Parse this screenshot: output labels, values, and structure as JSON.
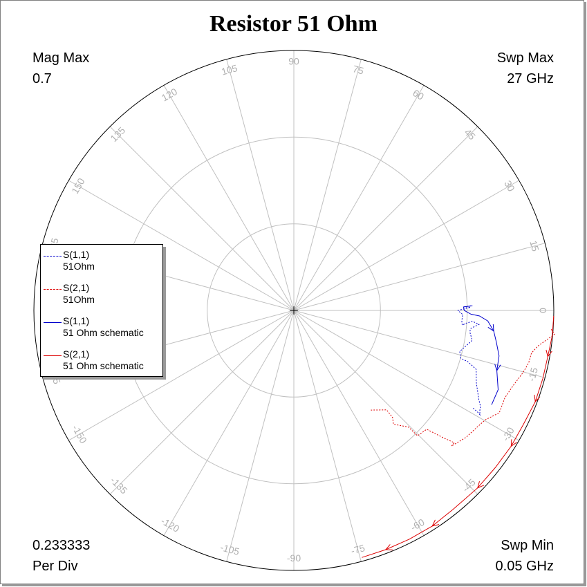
{
  "title": "Resistor 51 Ohm",
  "mag_max_label": "Mag Max",
  "mag_max_value": "0.7",
  "swp_max_label": "Swp Max",
  "swp_max_value": "27  GHz",
  "per_div_value": "0.233333",
  "per_div_label": "Per Div",
  "swp_min_label": "Swp Min",
  "swp_min_value": "0.05  GHz",
  "colors": {
    "blue": "#0000cc",
    "red": "#dd0000",
    "grid": "#c0c0c0",
    "label": "#b0b0b0"
  },
  "legend": [
    {
      "name": "S(1,1)",
      "sub": "51Ohm",
      "color": "#0000cc",
      "style": "dashed"
    },
    {
      "name": "S(2,1)",
      "sub": "51Ohm",
      "color": "#dd0000",
      "style": "dashed"
    },
    {
      "name": "S(1,1)",
      "sub": "51 Ohm schematic",
      "color": "#0000cc",
      "style": "solid"
    },
    {
      "name": "S(2,1)",
      "sub": "51 Ohm schematic",
      "color": "#dd0000",
      "style": "solid"
    }
  ],
  "chart_data": {
    "type": "polar",
    "title": "Resistor 51 Ohm",
    "rmax": 0.7,
    "per_div": 0.233333,
    "ring_radii": [
      0.233333,
      0.466667,
      0.7
    ],
    "angle_labels": [
      "0",
      "15",
      "30",
      "45",
      "60",
      "75",
      "90",
      "105",
      "120",
      "135",
      "150",
      "165",
      "-165",
      "-150",
      "-135",
      "-120",
      "-105",
      "-90",
      "-75",
      "-60",
      "-45",
      "-30",
      "-15"
    ],
    "angle_values": [
      0,
      15,
      30,
      45,
      60,
      75,
      90,
      105,
      120,
      135,
      150,
      165,
      -165,
      -150,
      -135,
      -120,
      -105,
      -90,
      -75,
      -60,
      -45,
      -30,
      -15
    ],
    "sweep": {
      "min_ghz": 0.05,
      "max_ghz": 27
    },
    "series": [
      {
        "name": "S(1,1) 51Ohm",
        "style": "dashed",
        "color": "#0000cc",
        "points": [
          [
            0.477,
            1.5
          ],
          [
            0.459,
            1.2
          ],
          [
            0.476,
            1.0
          ],
          [
            0.442,
            0.0
          ],
          [
            0.455,
            -1.4
          ],
          [
            0.453,
            -3.5
          ],
          [
            0.455,
            -5.0
          ],
          [
            0.466,
            -4.2
          ],
          [
            0.482,
            -3.5
          ],
          [
            0.5,
            -4.3
          ],
          [
            0.479,
            -5.8
          ],
          [
            0.477,
            -6.9
          ],
          [
            0.487,
            -9.5
          ],
          [
            0.46,
            -13.9
          ],
          [
            0.468,
            -16.0
          ],
          [
            0.488,
            -16.4
          ],
          [
            0.516,
            -17.9
          ],
          [
            0.528,
            -21.5
          ],
          [
            0.552,
            -25.6
          ],
          [
            0.565,
            -27.2
          ],
          [
            0.569,
            -28.4
          ],
          [
            0.575,
            -29.3
          ],
          [
            0.564,
            -28.9
          ],
          [
            0.55,
            -28.6
          ]
        ]
      },
      {
        "name": "S(1,1) 51 Ohm schematic",
        "style": "solid",
        "color": "#0000cc",
        "points": [
          [
            0.481,
            1.5
          ],
          [
            0.457,
            1.2
          ],
          [
            0.459,
            0.0
          ],
          [
            0.477,
            -1.2
          ],
          [
            0.5,
            -1.7
          ],
          [
            0.523,
            -3.1
          ],
          [
            0.541,
            -5.9
          ],
          [
            0.552,
            -8.9
          ],
          [
            0.566,
            -12.5
          ],
          [
            0.57,
            -16.5
          ],
          [
            0.59,
            -21.2
          ],
          [
            0.59,
            -25.5
          ]
        ]
      },
      {
        "name": "S(2,1) 51Ohm",
        "style": "dashed",
        "color": "#dd0000",
        "points": [
          [
            0.695,
            -4.2
          ],
          [
            0.705,
            -5.2
          ],
          [
            0.663,
            -8.4
          ],
          [
            0.65,
            -10.2
          ],
          [
            0.648,
            -12.5
          ],
          [
            0.64,
            -15.0
          ],
          [
            0.624,
            -19.0
          ],
          [
            0.615,
            -22.5
          ],
          [
            0.618,
            -26.5
          ],
          [
            0.594,
            -29.7
          ],
          [
            0.585,
            -32.5
          ],
          [
            0.576,
            -36.4
          ],
          [
            0.56,
            -40.7
          ],
          [
            0.56,
            -39.5
          ],
          [
            0.53,
            -40.4
          ],
          [
            0.48,
            -41.8
          ],
          [
            0.474,
            -45.4
          ],
          [
            0.44,
            -45.5
          ],
          [
            0.407,
            -48.8
          ],
          [
            0.392,
            -47.3
          ],
          [
            0.366,
            -47.0
          ],
          [
            0.339,
            -52.3
          ]
        ]
      },
      {
        "name": "S(2,1) 51 Ohm schematic",
        "style": "solid",
        "color": "#dd0000",
        "points": [
          [
            0.7,
            -1.2
          ],
          [
            0.699,
            -5.6
          ],
          [
            0.695,
            -10.3
          ],
          [
            0.695,
            -15.3
          ],
          [
            0.695,
            -20.7
          ],
          [
            0.69,
            -26.5
          ],
          [
            0.69,
            -32.0
          ],
          [
            0.688,
            -38.0
          ],
          [
            0.688,
            -44.0
          ],
          [
            0.686,
            -51.3
          ],
          [
            0.69,
            -57.3
          ],
          [
            0.69,
            -63.2
          ],
          [
            0.69,
            -69.0
          ],
          [
            0.69,
            -74.6
          ]
        ]
      }
    ],
    "arrow_indices": {
      "0": [],
      "1": [
        6,
        9
      ],
      "2": [],
      "3": [
        2,
        4,
        6,
        8,
        10,
        12
      ]
    }
  }
}
